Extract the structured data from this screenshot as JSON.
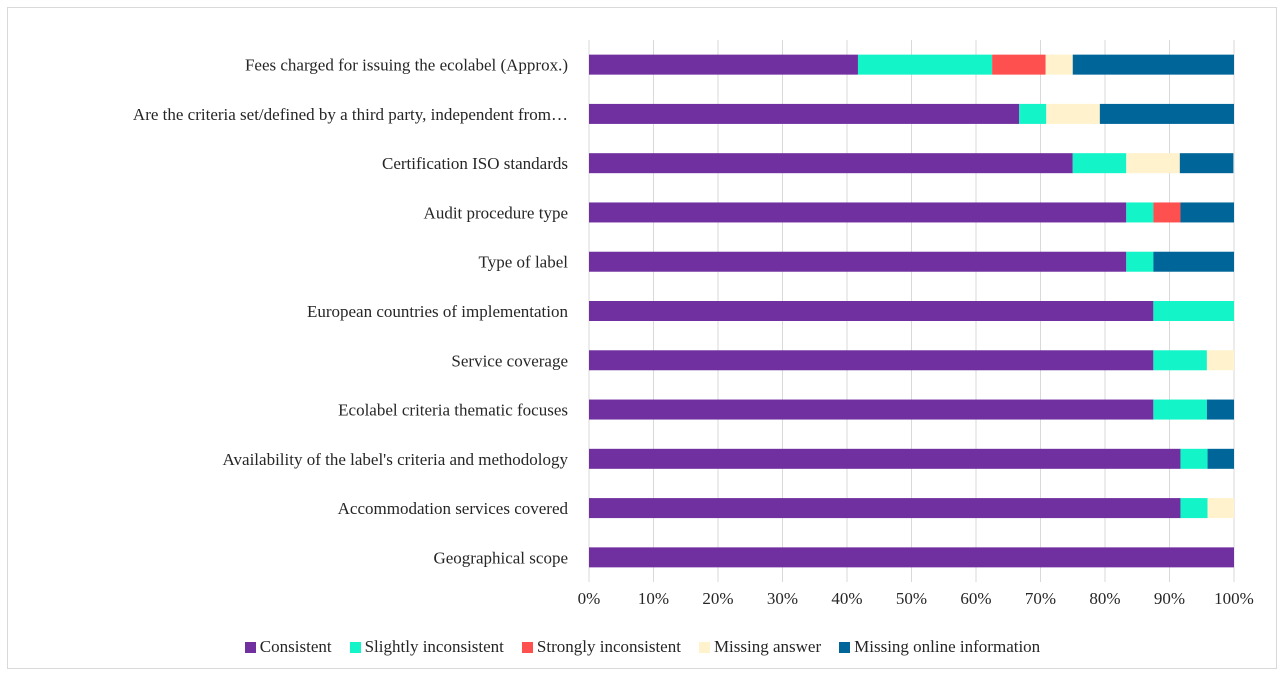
{
  "chart_data": {
    "type": "bar",
    "orientation": "horizontal",
    "stacked": true,
    "percent": true,
    "categories": [
      "Fees charged for issuing the ecolabel (Approx.)",
      "Are the criteria set/defined by a third party, independent from…",
      "Certification ISO standards",
      "Audit procedure type",
      "Type of label",
      "European countries of implementation",
      "Service coverage",
      "Ecolabel criteria thematic focuses",
      "Availability of the label's criteria and methodology",
      "Accommodation services covered",
      "Geographical scope"
    ],
    "series": [
      {
        "name": "Consistent",
        "color": "#7030a0",
        "values": [
          41.7,
          66.7,
          75.0,
          83.3,
          83.3,
          87.5,
          87.5,
          87.5,
          91.7,
          91.7,
          100.0
        ]
      },
      {
        "name": "Slightly inconsistent",
        "color": "#13f4c9",
        "values": [
          20.8,
          4.2,
          8.3,
          4.2,
          4.2,
          12.5,
          8.3,
          8.3,
          4.2,
          4.2,
          0
        ]
      },
      {
        "name": "Strongly inconsistent",
        "color": "#ff5050",
        "values": [
          8.3,
          0,
          0,
          4.2,
          0,
          0,
          0,
          0,
          0,
          0,
          0
        ]
      },
      {
        "name": "Missing answer",
        "color": "#fff2cc",
        "values": [
          4.2,
          8.3,
          8.3,
          0,
          0,
          0,
          4.2,
          0,
          0,
          4.2,
          0
        ]
      },
      {
        "name": "Missing online information",
        "color": "#006699",
        "values": [
          25.0,
          20.8,
          8.3,
          8.3,
          12.5,
          0,
          0,
          4.2,
          4.2,
          0,
          0
        ]
      }
    ],
    "xlim": [
      0,
      100
    ],
    "xticks": [
      "0%",
      "10%",
      "20%",
      "30%",
      "40%",
      "50%",
      "60%",
      "70%",
      "80%",
      "90%",
      "100%"
    ],
    "xlabel": "",
    "ylabel": "",
    "title": "",
    "grid": "vertical",
    "legend_position": "bottom"
  }
}
